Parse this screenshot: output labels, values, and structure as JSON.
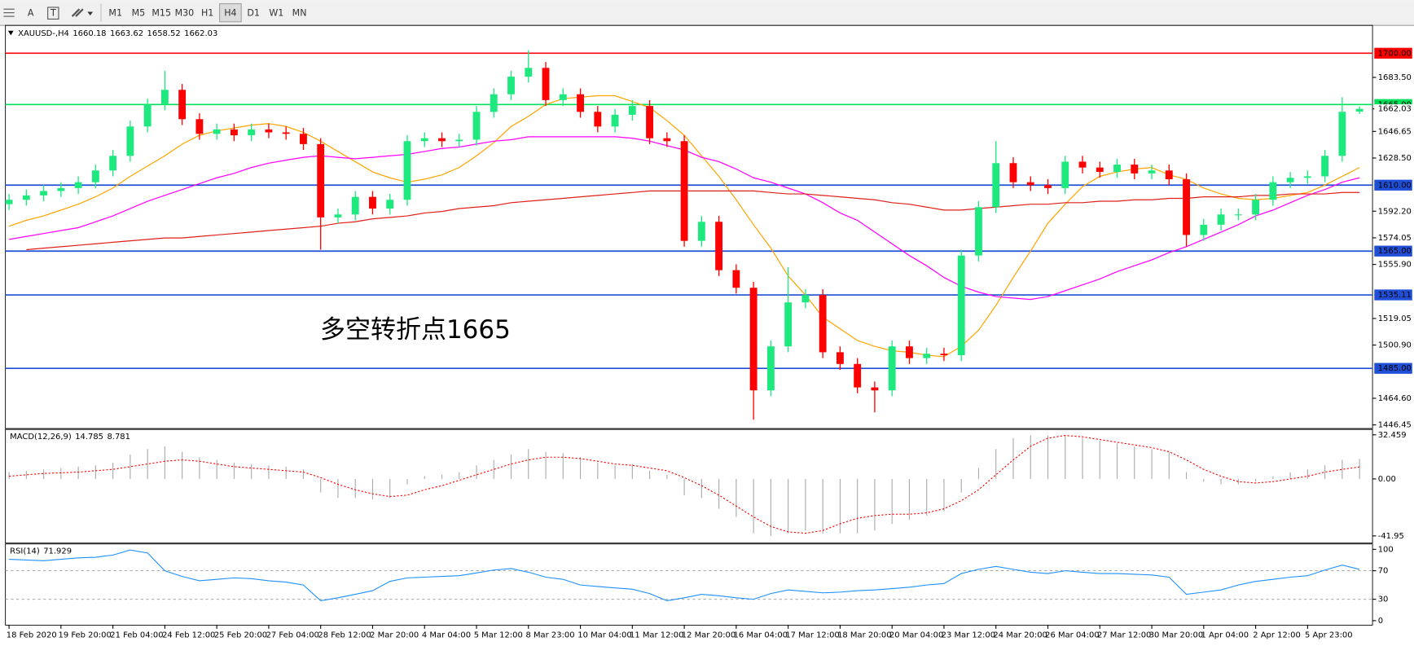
{
  "toolbar": {
    "tools": [
      "A",
      "T"
    ],
    "timeframes": [
      "M1",
      "M5",
      "M15",
      "M30",
      "H1",
      "H4",
      "D1",
      "W1",
      "MN"
    ]
  },
  "chart_data": [
    {
      "type": "candlestick",
      "symbol": "XAUUSD-,H4",
      "categories": [
        "18 Feb 2020",
        null,
        null,
        "19 Feb 20:00",
        null,
        null,
        "21 Feb 04:00",
        null,
        null,
        "24 Feb 12:00",
        null,
        null,
        "25 Feb 20:00",
        null,
        null,
        "27 Feb 04:00",
        null,
        null,
        "28 Feb 12:00",
        null,
        null,
        "2 Mar 20:00",
        null,
        null,
        "4 Mar 04:00",
        null,
        null,
        "5 Mar 12:00",
        null,
        null,
        "8 Mar 23:00",
        null,
        null,
        "10 Mar 04:00",
        null,
        null,
        "11 Mar 12:00",
        null,
        null,
        "12 Mar 20:00",
        null,
        null,
        "16 Mar 04:00",
        null,
        null,
        "17 Mar 12:00",
        null,
        null,
        "18 Mar 20:00",
        null,
        null,
        "20 Mar 04:00",
        null,
        null,
        "23 Mar 12:00",
        null,
        null,
        "24 Mar 20:00",
        null,
        null,
        "26 Mar 04:00",
        null,
        null,
        "27 Mar 12:00",
        null,
        null,
        "30 Mar 20:00",
        null,
        null,
        "1 Apr 04:00",
        null,
        null,
        "2 Apr 12:00",
        null,
        null,
        "5 Apr 23:00",
        null,
        null,
        null
      ],
      "open": [
        1597,
        1600,
        1603,
        1606,
        1608,
        1612,
        1620,
        1630,
        1650,
        1665,
        1675,
        1655,
        1645,
        1648,
        1644,
        1648,
        1646,
        1645,
        1638,
        1588,
        1590,
        1602,
        1594,
        1600,
        1640,
        1642,
        1640,
        1641,
        1660,
        1672,
        1684,
        1690,
        1668,
        1672,
        1660,
        1650,
        1658,
        1664,
        1642,
        1640,
        1572,
        1585,
        1552,
        1540,
        1470,
        1500,
        1530,
        1535,
        1496,
        1488,
        1472,
        1470,
        1500,
        1492,
        1495,
        1494,
        1562,
        1595,
        1625,
        1612,
        1610,
        1608,
        1626,
        1622,
        1619,
        1624,
        1618,
        1620,
        1614,
        1576,
        1583,
        1590,
        1590,
        1600,
        1612,
        1615,
        1616,
        1630,
        1660.18
      ],
      "high": [
        1604,
        1607,
        1610,
        1612,
        1616,
        1624,
        1634,
        1654,
        1669,
        1688,
        1679,
        1659,
        1652,
        1652,
        1652,
        1652,
        1650,
        1649,
        1642,
        1594,
        1606,
        1606,
        1604,
        1644,
        1646,
        1646,
        1645,
        1664,
        1676,
        1688,
        1702,
        1694,
        1676,
        1676,
        1664,
        1662,
        1668,
        1668,
        1646,
        1644,
        1589,
        1589,
        1556,
        1544,
        1504,
        1554,
        1539,
        1539,
        1500,
        1492,
        1476,
        1504,
        1504,
        1499,
        1499,
        1566,
        1599,
        1640,
        1629,
        1616,
        1614,
        1630,
        1630,
        1626,
        1628,
        1628,
        1624,
        1624,
        1618,
        1587,
        1594,
        1594,
        1604,
        1616,
        1619,
        1620,
        1634,
        1670,
        1663.62
      ],
      "low": [
        1593,
        1596,
        1599,
        1602,
        1604,
        1608,
        1616,
        1626,
        1646,
        1661,
        1651,
        1641,
        1641,
        1640,
        1640,
        1642,
        1641,
        1634,
        1566,
        1584,
        1586,
        1590,
        1590,
        1596,
        1636,
        1636,
        1636,
        1637,
        1656,
        1668,
        1680,
        1664,
        1664,
        1656,
        1646,
        1646,
        1654,
        1638,
        1636,
        1568,
        1568,
        1548,
        1536,
        1450,
        1466,
        1496,
        1526,
        1492,
        1484,
        1468,
        1455,
        1466,
        1488,
        1488,
        1490,
        1490,
        1558,
        1591,
        1608,
        1606,
        1604,
        1604,
        1618,
        1615,
        1615,
        1614,
        1614,
        1610,
        1568,
        1572,
        1579,
        1586,
        1586,
        1596,
        1608,
        1611,
        1612,
        1626,
        1658.52
      ],
      "close": [
        1600,
        1603,
        1606,
        1608,
        1612,
        1620,
        1630,
        1650,
        1665,
        1675,
        1655,
        1645,
        1648,
        1644,
        1648,
        1646,
        1645,
        1638,
        1588,
        1590,
        1602,
        1594,
        1600,
        1640,
        1642,
        1640,
        1641,
        1660,
        1672,
        1684,
        1690,
        1668,
        1672,
        1660,
        1650,
        1658,
        1664,
        1642,
        1640,
        1572,
        1585,
        1552,
        1540,
        1470,
        1500,
        1530,
        1535,
        1496,
        1488,
        1472,
        1470,
        1500,
        1492,
        1495,
        1494,
        1562,
        1595,
        1625,
        1612,
        1610,
        1608,
        1626,
        1622,
        1619,
        1624,
        1618,
        1620,
        1614,
        1576,
        1583,
        1590,
        1590,
        1600,
        1612,
        1615,
        1616,
        1630,
        1660,
        1662.03
      ],
      "up_color": "#1de97f",
      "down_color": "#ff0000",
      "series": [
        {
          "color": "#ffa500",
          "values": [
            1582,
            1586,
            1589,
            1593,
            1597,
            1602,
            1608,
            1616,
            1623,
            1630,
            1638,
            1644,
            1647,
            1649,
            1651,
            1652,
            1650,
            1646,
            1640,
            1633,
            1626,
            1619,
            1615,
            1612,
            1614,
            1617,
            1622,
            1630,
            1639,
            1650,
            1657,
            1665,
            1669,
            1670,
            1671,
            1671,
            1667,
            1663,
            1654,
            1644,
            1630,
            1616,
            1600,
            1583,
            1567,
            1548,
            1535,
            1520,
            1512,
            1504,
            1500,
            1497,
            1496,
            1494,
            1493,
            1500,
            1511,
            1528,
            1547,
            1565,
            1584,
            1597,
            1609,
            1616,
            1619,
            1621,
            1622,
            1617,
            1614,
            1608,
            1604,
            1601,
            1600,
            1601,
            1603,
            1605,
            1610,
            1616,
            1622
          ]
        },
        {
          "color": "#ff00ff",
          "values": [
            1573,
            1575,
            1577,
            1579,
            1581,
            1585,
            1589,
            1594,
            1599,
            1603,
            1607,
            1611,
            1615,
            1618,
            1622,
            1625,
            1627,
            1629,
            1630,
            1629,
            1628,
            1629,
            1630,
            1631,
            1633,
            1635,
            1636,
            1638,
            1640,
            1641,
            1643,
            1643,
            1643,
            1643,
            1643,
            1643,
            1642,
            1640,
            1637,
            1634,
            1629,
            1626,
            1621,
            1615,
            1612,
            1608,
            1604,
            1598,
            1591,
            1586,
            1578,
            1570,
            1562,
            1555,
            1547,
            1541,
            1537,
            1534,
            1533,
            1532,
            1534,
            1538,
            1542,
            1546,
            1551,
            1555,
            1559,
            1564,
            1568,
            1573,
            1578,
            1583,
            1589,
            1593,
            1598,
            1603,
            1607,
            1612,
            1615
          ]
        },
        {
          "color": "#e0201b",
          "values": [
            null,
            1566,
            1567,
            1568,
            1569,
            1570,
            1571,
            1572,
            1573,
            1574,
            1574,
            1575,
            1576,
            1577,
            1578,
            1579,
            1580,
            1581,
            1582,
            1584,
            1585,
            1587,
            1588,
            1589,
            1591,
            1592,
            1594,
            1595,
            1596,
            1598,
            1599,
            1600,
            1601,
            1602,
            1603,
            1604,
            1605,
            1606,
            1606,
            1606,
            1606,
            1606,
            1606,
            1606,
            1605,
            1604,
            1604,
            1603,
            1602,
            1601,
            1600,
            1598,
            1597,
            1595,
            1593,
            1593,
            1594,
            1595,
            1596,
            1597,
            1597,
            1598,
            1598,
            1599,
            1599,
            1600,
            1600,
            1601,
            1601,
            1602,
            1602,
            1602,
            1603,
            1603,
            1604,
            1604,
            1604,
            1605,
            1605
          ]
        }
      ],
      "levels": [
        {
          "value": 1700,
          "label": "1700.00",
          "color": "#ff0000"
        },
        {
          "value": 1665,
          "label": "1665.00",
          "color": "#00e05a"
        },
        {
          "value": 1610,
          "label": "1610.00",
          "color": "#1f4fd6"
        },
        {
          "value": 1565,
          "label": "1565.00",
          "color": "#1f4fd6"
        },
        {
          "value": 1535.11,
          "label": "1535.11",
          "color": "#1f4fd6"
        },
        {
          "value": 1485,
          "label": "1485.00",
          "color": "#1f4fd6"
        }
      ],
      "annotation": "多空转折点1665",
      "annotation_color": "#ff0000",
      "ylim": [
        1444.58,
        1717.76
      ],
      "yticks": [
        {
          "value": 1683.5,
          "label": "1683.50"
        },
        {
          "value": 1646.65,
          "label": "1646.65"
        },
        {
          "value": 1628.5,
          "label": "1628.50"
        },
        {
          "value": 1592.2,
          "label": "1592.20"
        },
        {
          "value": 1574.05,
          "label": "1574.05"
        },
        {
          "value": 1555.9,
          "label": "1555.90"
        },
        {
          "value": 1519.05,
          "label": "1519.05"
        },
        {
          "value": 1500.9,
          "label": "1500.90"
        },
        {
          "value": 1464.6,
          "label": "1464.60"
        },
        {
          "value": 1446.45,
          "label": "1446.45"
        }
      ]
    },
    {
      "type": "macd",
      "title": "MACD(12,26,9)",
      "histogram": [
        5,
        6,
        7,
        8,
        9,
        10,
        12,
        18,
        22,
        24,
        20,
        16,
        14,
        12,
        11,
        10,
        9,
        7,
        -10,
        -14,
        -14,
        -15,
        -14,
        -4,
        2,
        3,
        5,
        10,
        14,
        18,
        22,
        20,
        19,
        16,
        12,
        10,
        11,
        6,
        3,
        -12,
        -14,
        -22,
        -28,
        -40,
        -42,
        -40,
        -38,
        -40,
        -40,
        -40,
        -38,
        -33,
        -30,
        -27,
        -24,
        -10,
        8,
        22,
        30,
        32,
        32,
        32,
        30,
        28,
        26,
        24,
        22,
        20,
        5,
        -2,
        -4,
        -4,
        -2,
        2,
        5,
        7,
        10,
        14,
        14.785
      ],
      "signal": [
        2,
        3,
        4,
        4.5,
        5,
        6,
        7,
        9,
        11,
        13,
        14,
        13,
        11,
        9,
        8,
        7,
        6,
        5,
        1,
        -4,
        -8,
        -11,
        -13,
        -12,
        -8,
        -5,
        -1,
        3,
        7,
        11,
        14,
        16,
        16,
        15,
        13,
        11,
        10,
        8,
        6,
        1,
        -5,
        -12,
        -20,
        -28,
        -35,
        -39,
        -40,
        -38,
        -33,
        -29,
        -27,
        -26,
        -26,
        -25,
        -22,
        -16,
        -8,
        3,
        14,
        24,
        30,
        32,
        31,
        29,
        27,
        25,
        23,
        20,
        14,
        7,
        2,
        -2,
        -3,
        -2,
        0,
        2,
        5,
        7,
        8.781
      ],
      "histogram_color": "#a9a9a9",
      "signal_color": "#ff0000",
      "ylim": [
        -45.9,
        35.1
      ],
      "yticks": [
        32.459,
        {
          "value": 0,
          "label": "0.00"
        },
        -41.95
      ]
    },
    {
      "type": "line",
      "title": "RSI(14)",
      "color": "#1e90ff",
      "values": [
        86,
        85,
        84,
        86,
        88,
        89,
        92,
        99,
        95,
        70,
        62,
        56,
        58,
        60,
        59,
        56,
        54,
        50,
        28,
        32,
        37,
        42,
        55,
        60,
        61,
        62,
        63,
        67,
        71,
        73,
        68,
        61,
        58,
        50,
        48,
        46,
        44,
        38,
        28,
        32,
        37,
        35,
        32,
        30,
        38,
        43,
        41,
        39,
        40,
        42,
        43,
        45,
        47,
        50,
        52,
        66,
        72,
        76,
        72,
        68,
        66,
        70,
        68,
        66,
        66,
        65,
        64,
        61,
        37,
        40,
        43,
        50,
        55,
        58,
        61,
        63,
        71,
        78,
        71.929
      ],
      "levels": [
        70,
        30
      ],
      "ylim": [
        -5,
        105
      ],
      "yticks": [
        100,
        70,
        30,
        0
      ]
    }
  ]
}
